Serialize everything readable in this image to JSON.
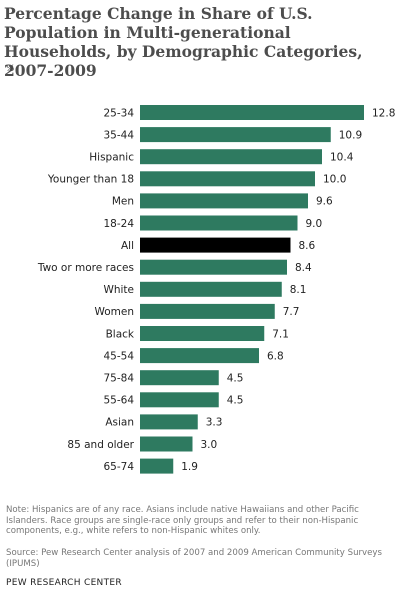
{
  "title": "Percentage Change in Share of U.S. Population in Multi-generational Households, by Demographic Categories, 2007-2009",
  "unit": "%",
  "note": "Note: Hispanics are of any race. Asians include native Hawaiians and other Pacific Islanders. Race groups are single-race only groups and refer to their non-Hispanic components, e.g., white refers to non-Hispanic whites only.",
  "source": "Source: Pew Research Center analysis of 2007 and 2009 American Community Surveys (IPUMS)",
  "footer": "PEW RESEARCH CENTER",
  "colors": {
    "bar": "#2e7a60",
    "highlight": "#000000"
  },
  "chart_data": {
    "type": "bar",
    "orientation": "horizontal",
    "categories": [
      "25-34",
      "35-44",
      "Hispanic",
      "Younger than 18",
      "Men",
      "18-24",
      "All",
      "Two or more races",
      "White",
      "Women",
      "Black",
      "45-54",
      "75-84",
      "55-64",
      "Asian",
      "85 and older",
      "65-74"
    ],
    "values": [
      12.8,
      10.9,
      10.4,
      10.0,
      9.6,
      9.0,
      8.6,
      8.4,
      8.1,
      7.7,
      7.1,
      6.8,
      4.5,
      4.5,
      3.3,
      3.0,
      1.9
    ],
    "value_labels": [
      "12.8",
      "10.9",
      "10.4",
      "10.0",
      "9.6",
      "9.0",
      "8.6",
      "8.4",
      "8.1",
      "7.7",
      "7.1",
      "6.8",
      "4.5",
      "4.5",
      "3.3",
      "3.0",
      "1.9"
    ],
    "highlight": [
      "All"
    ],
    "xlim": [
      0,
      12.8
    ],
    "grid": false,
    "legend": false
  }
}
